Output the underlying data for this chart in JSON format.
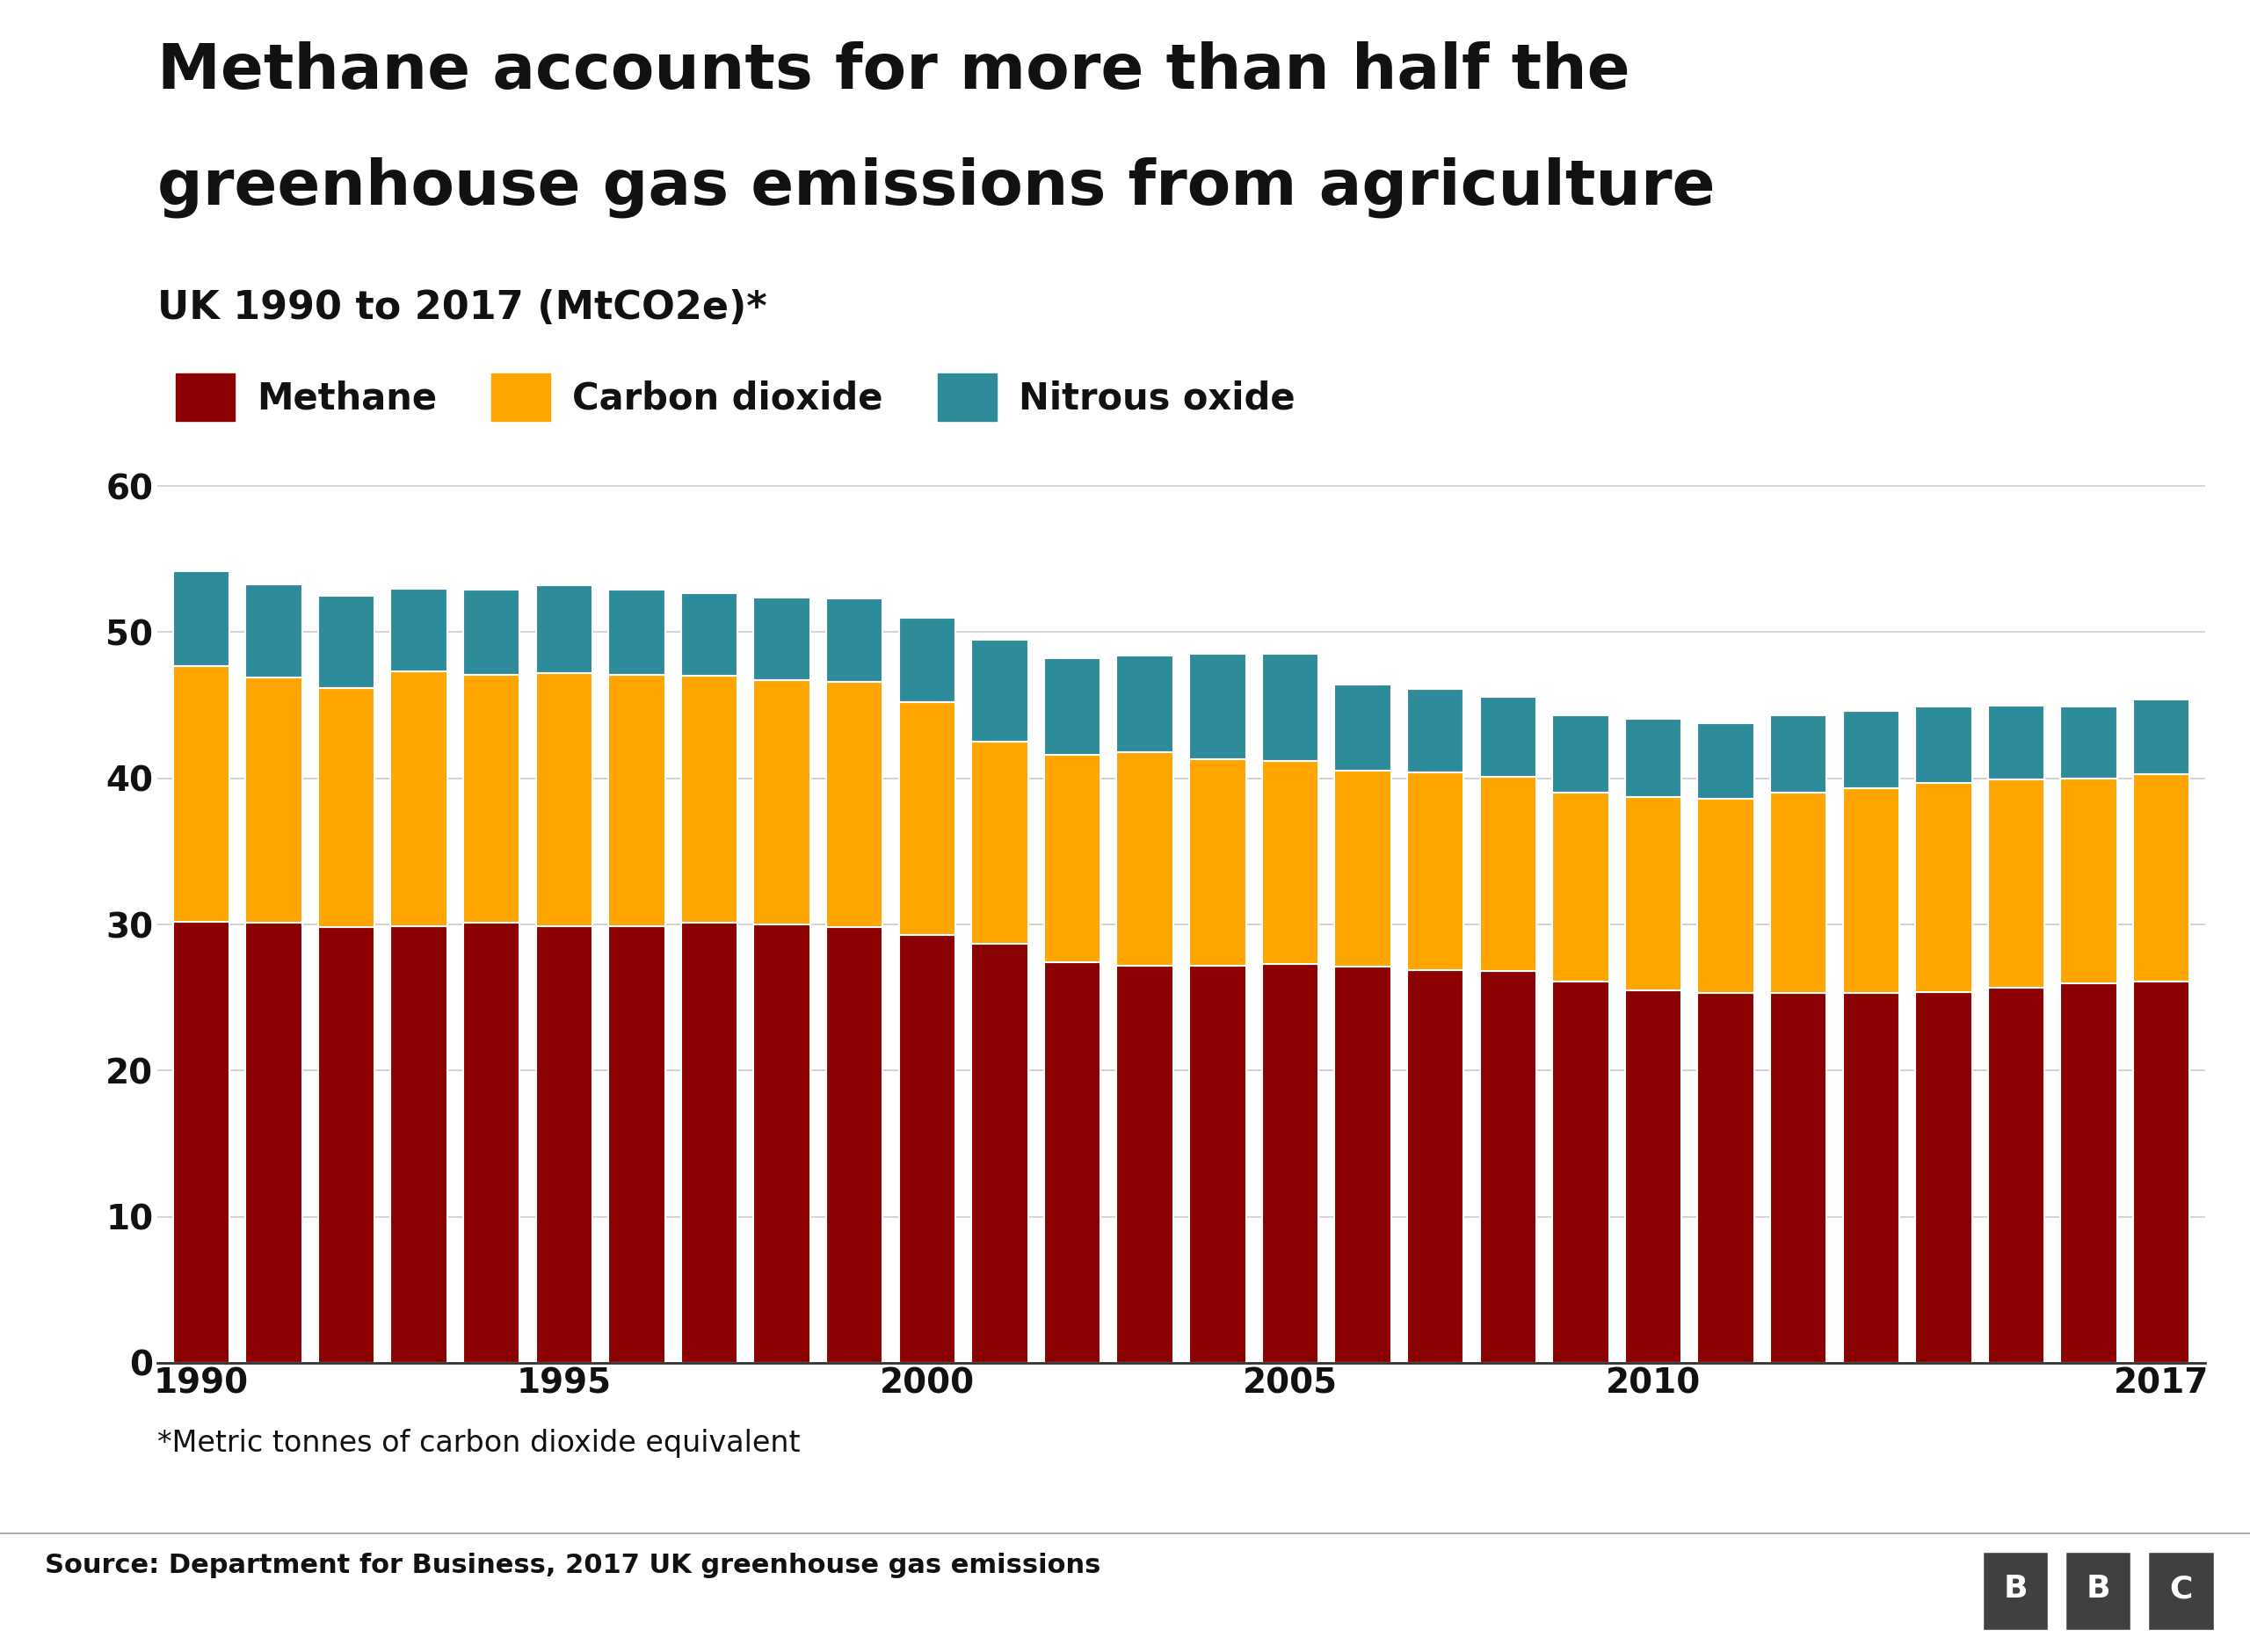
{
  "title_line1": "Methane accounts for more than half the",
  "title_line2": "greenhouse gas emissions from agriculture",
  "subtitle": "UK 1990 to 2017 (MtCO2e)*",
  "footnote": "*Metric tonnes of carbon dioxide equivalent",
  "source": "Source: Department for Business, 2017 UK greenhouse gas emissions",
  "years": [
    1990,
    1991,
    1992,
    1993,
    1994,
    1995,
    1996,
    1997,
    1998,
    1999,
    2000,
    2001,
    2002,
    2003,
    2004,
    2005,
    2006,
    2007,
    2008,
    2009,
    2010,
    2011,
    2012,
    2013,
    2014,
    2015,
    2016,
    2017
  ],
  "methane": [
    30.2,
    30.1,
    29.8,
    29.9,
    30.1,
    29.9,
    29.9,
    30.1,
    30.0,
    29.8,
    29.3,
    28.7,
    27.4,
    27.2,
    27.2,
    27.3,
    27.1,
    26.9,
    26.8,
    26.1,
    25.5,
    25.3,
    25.3,
    25.3,
    25.4,
    25.7,
    26.0,
    26.1
  ],
  "carbon_dioxide": [
    17.5,
    16.8,
    16.4,
    17.4,
    17.0,
    17.3,
    17.2,
    16.9,
    16.7,
    16.8,
    15.9,
    13.8,
    14.2,
    14.6,
    14.1,
    13.9,
    13.4,
    13.5,
    13.3,
    12.9,
    13.2,
    13.3,
    13.7,
    14.0,
    14.3,
    14.2,
    14.0,
    14.2
  ],
  "nitrous_oxide": [
    6.5,
    6.4,
    6.3,
    5.7,
    5.8,
    6.0,
    5.8,
    5.7,
    5.7,
    5.7,
    5.8,
    7.0,
    6.6,
    6.6,
    7.2,
    7.3,
    5.9,
    5.7,
    5.5,
    5.3,
    5.4,
    5.2,
    5.3,
    5.3,
    5.2,
    5.1,
    4.9,
    5.1
  ],
  "methane_color": "#8B0000",
  "carbon_dioxide_color": "#FFA500",
  "nitrous_oxide_color": "#2E8B9A",
  "background_color": "#ffffff",
  "legend_labels": [
    "Methane",
    "Carbon dioxide",
    "Nitrous oxide"
  ],
  "ylim": [
    0,
    65
  ],
  "yticks": [
    0,
    10,
    20,
    30,
    40,
    50,
    60
  ],
  "grid_color": "#cccccc",
  "bar_edge_color": "#ffffff",
  "title_fontsize": 52,
  "subtitle_fontsize": 32,
  "legend_fontsize": 30,
  "axis_fontsize": 28,
  "footnote_fontsize": 24,
  "source_fontsize": 22,
  "xtick_years": [
    1990,
    1995,
    2000,
    2005,
    2010,
    2017
  ]
}
